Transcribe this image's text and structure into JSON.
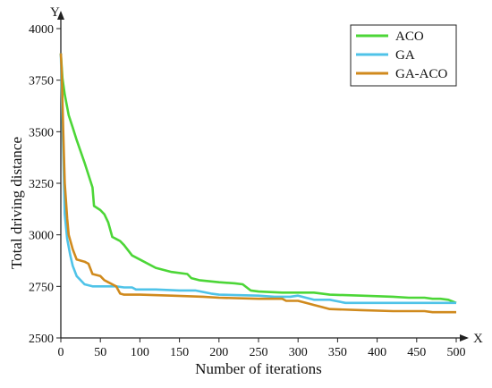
{
  "chart_data": {
    "type": "line",
    "title": "",
    "xlabel": "Number of iterations",
    "ylabel": "Total driving distance",
    "x_axis_letter": "X",
    "y_axis_letter": "Y",
    "xlim": [
      0,
      500
    ],
    "ylim": [
      2500,
      4000
    ],
    "x_ticks": [
      "0",
      "50",
      "100",
      "150",
      "200",
      "250",
      "300",
      "350",
      "400",
      "450",
      "500"
    ],
    "y_ticks": [
      "2500",
      "2750",
      "3000",
      "3250",
      "3500",
      "3750",
      "4000"
    ],
    "grid": false,
    "legend_position": "top-right",
    "series": [
      {
        "name": "ACO",
        "color": "#4cd637",
        "x": [
          0,
          2,
          5,
          10,
          15,
          20,
          30,
          40,
          42,
          50,
          55,
          60,
          65,
          70,
          75,
          80,
          90,
          100,
          120,
          140,
          160,
          165,
          175,
          200,
          220,
          230,
          240,
          250,
          280,
          300,
          320,
          340,
          380,
          420,
          440,
          460,
          470,
          480,
          490,
          500
        ],
        "values": [
          3880,
          3760,
          3680,
          3580,
          3520,
          3460,
          3350,
          3230,
          3140,
          3120,
          3100,
          3060,
          2990,
          2980,
          2970,
          2950,
          2900,
          2880,
          2840,
          2820,
          2810,
          2790,
          2780,
          2770,
          2765,
          2760,
          2730,
          2725,
          2720,
          2720,
          2720,
          2710,
          2705,
          2700,
          2695,
          2695,
          2690,
          2690,
          2685,
          2670
        ]
      },
      {
        "name": "GA",
        "color": "#4fc3e8",
        "x": [
          0,
          1,
          3,
          5,
          8,
          12,
          15,
          20,
          25,
          30,
          40,
          50,
          60,
          70,
          80,
          90,
          95,
          120,
          150,
          170,
          190,
          200,
          250,
          270,
          290,
          300,
          320,
          340,
          360,
          380,
          420,
          460,
          500
        ],
        "values": [
          3880,
          3700,
          3400,
          3100,
          2980,
          2900,
          2850,
          2800,
          2780,
          2760,
          2750,
          2750,
          2750,
          2750,
          2745,
          2745,
          2735,
          2735,
          2730,
          2730,
          2715,
          2710,
          2705,
          2700,
          2700,
          2705,
          2685,
          2685,
          2670,
          2670,
          2670,
          2670,
          2670
        ]
      },
      {
        "name": "GA-ACO",
        "color": "#d08a1d",
        "x": [
          0,
          1,
          3,
          5,
          8,
          10,
          15,
          20,
          30,
          35,
          40,
          45,
          50,
          55,
          60,
          65,
          70,
          75,
          80,
          100,
          140,
          180,
          200,
          250,
          280,
          285,
          300,
          310,
          320,
          330,
          340,
          380,
          420,
          460,
          470,
          490,
          500
        ],
        "values": [
          3880,
          3800,
          3500,
          3250,
          3080,
          3000,
          2930,
          2880,
          2870,
          2860,
          2810,
          2805,
          2800,
          2780,
          2770,
          2760,
          2750,
          2715,
          2710,
          2710,
          2705,
          2700,
          2695,
          2690,
          2690,
          2680,
          2680,
          2670,
          2660,
          2650,
          2640,
          2635,
          2630,
          2630,
          2625,
          2625,
          2625
        ]
      }
    ]
  }
}
